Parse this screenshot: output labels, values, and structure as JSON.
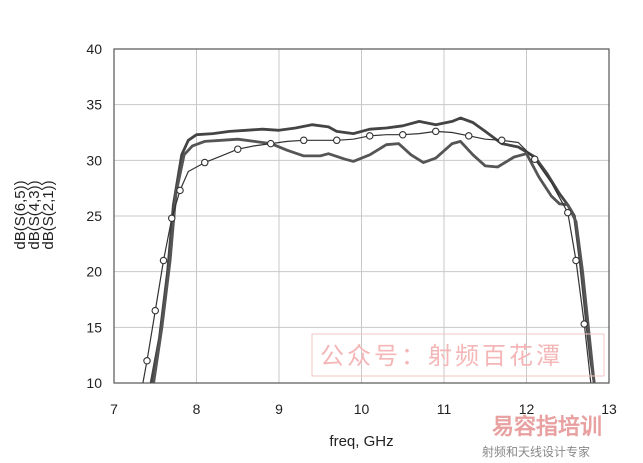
{
  "chart_data": {
    "type": "line",
    "title": "",
    "xlabel": "freq, GHz",
    "ylabels": [
      "dB(S(6,5))",
      "dB(S(4,3))",
      "dB(S(2,1))"
    ],
    "xlim": [
      7,
      13
    ],
    "ylim": [
      10,
      40
    ],
    "x_ticks": [
      7,
      8,
      9,
      10,
      11,
      12,
      13
    ],
    "y_ticks": [
      10,
      15,
      20,
      25,
      30,
      35,
      40
    ],
    "grid": true,
    "series": [
      {
        "color": "#444444",
        "stroke": "thick",
        "points": [
          [
            7.45,
            10
          ],
          [
            7.55,
            14
          ],
          [
            7.65,
            20
          ],
          [
            7.72,
            26
          ],
          [
            7.82,
            30.5
          ],
          [
            7.9,
            31.8
          ],
          [
            8.0,
            32.3
          ],
          [
            8.2,
            32.4
          ],
          [
            8.4,
            32.6
          ],
          [
            8.6,
            32.7
          ],
          [
            8.8,
            32.8
          ],
          [
            9.0,
            32.7
          ],
          [
            9.2,
            32.9
          ],
          [
            9.4,
            33.2
          ],
          [
            9.6,
            33.0
          ],
          [
            9.7,
            32.6
          ],
          [
            9.9,
            32.4
          ],
          [
            10.1,
            32.8
          ],
          [
            10.3,
            32.9
          ],
          [
            10.5,
            33.1
          ],
          [
            10.7,
            33.5
          ],
          [
            10.9,
            33.2
          ],
          [
            11.1,
            33.5
          ],
          [
            11.2,
            33.8
          ],
          [
            11.35,
            33.4
          ],
          [
            11.5,
            32.6
          ],
          [
            11.7,
            31.5
          ],
          [
            11.9,
            31.2
          ],
          [
            12.1,
            30.3
          ],
          [
            12.25,
            28.8
          ],
          [
            12.4,
            27.0
          ],
          [
            12.5,
            26.0
          ],
          [
            12.58,
            25.0
          ],
          [
            12.65,
            21
          ],
          [
            12.72,
            16
          ],
          [
            12.78,
            12
          ],
          [
            12.82,
            10
          ]
        ]
      },
      {
        "color": "#555555",
        "stroke": "thick",
        "points": [
          [
            7.48,
            10
          ],
          [
            7.58,
            15
          ],
          [
            7.68,
            21
          ],
          [
            7.75,
            27
          ],
          [
            7.85,
            30.5
          ],
          [
            7.95,
            31.3
          ],
          [
            8.1,
            31.7
          ],
          [
            8.3,
            31.8
          ],
          [
            8.5,
            31.9
          ],
          [
            8.7,
            31.7
          ],
          [
            8.9,
            31.5
          ],
          [
            9.1,
            30.9
          ],
          [
            9.3,
            30.4
          ],
          [
            9.5,
            30.4
          ],
          [
            9.6,
            30.6
          ],
          [
            9.8,
            30.1
          ],
          [
            9.9,
            29.9
          ],
          [
            10.1,
            30.5
          ],
          [
            10.3,
            31.4
          ],
          [
            10.45,
            31.5
          ],
          [
            10.6,
            30.5
          ],
          [
            10.75,
            29.8
          ],
          [
            10.9,
            30.2
          ],
          [
            11.1,
            31.5
          ],
          [
            11.2,
            31.7
          ],
          [
            11.35,
            30.5
          ],
          [
            11.5,
            29.5
          ],
          [
            11.65,
            29.4
          ],
          [
            11.85,
            30.3
          ],
          [
            12.0,
            30.6
          ],
          [
            12.15,
            28.5
          ],
          [
            12.3,
            26.8
          ],
          [
            12.4,
            26.1
          ],
          [
            12.5,
            26.0
          ],
          [
            12.6,
            24.5
          ],
          [
            12.68,
            20
          ],
          [
            12.75,
            15
          ],
          [
            12.82,
            10
          ]
        ]
      },
      {
        "color": "#333333",
        "stroke": "thin",
        "markers": true,
        "marker_x": [
          7.4,
          7.5,
          7.6,
          7.7,
          7.8,
          8.1,
          8.5,
          8.9,
          9.3,
          9.7,
          10.1,
          10.5,
          10.9,
          11.3,
          11.7,
          12.1,
          12.5,
          12.6,
          12.7
        ],
        "points": [
          [
            7.35,
            10
          ],
          [
            7.4,
            12
          ],
          [
            7.5,
            16.5
          ],
          [
            7.6,
            21
          ],
          [
            7.7,
            24.8
          ],
          [
            7.8,
            27.3
          ],
          [
            7.9,
            29.0
          ],
          [
            8.1,
            29.8
          ],
          [
            8.3,
            30.4
          ],
          [
            8.5,
            31.0
          ],
          [
            8.7,
            31.3
          ],
          [
            8.9,
            31.5
          ],
          [
            9.1,
            31.7
          ],
          [
            9.3,
            31.8
          ],
          [
            9.5,
            31.8
          ],
          [
            9.7,
            31.8
          ],
          [
            9.9,
            31.9
          ],
          [
            10.1,
            32.2
          ],
          [
            10.3,
            32.3
          ],
          [
            10.5,
            32.3
          ],
          [
            10.7,
            32.4
          ],
          [
            10.9,
            32.6
          ],
          [
            11.1,
            32.5
          ],
          [
            11.3,
            32.2
          ],
          [
            11.5,
            31.9
          ],
          [
            11.7,
            31.8
          ],
          [
            11.9,
            31.6
          ],
          [
            12.1,
            30.1
          ],
          [
            12.3,
            28.0
          ],
          [
            12.5,
            25.3
          ],
          [
            12.6,
            21
          ],
          [
            12.7,
            15.3
          ],
          [
            12.78,
            10
          ]
        ]
      }
    ]
  },
  "watermark": {
    "text": "公众号：射频百花潭",
    "logo_text": "易容指培训",
    "logo_subtitle": "射频和天线设计专家"
  }
}
